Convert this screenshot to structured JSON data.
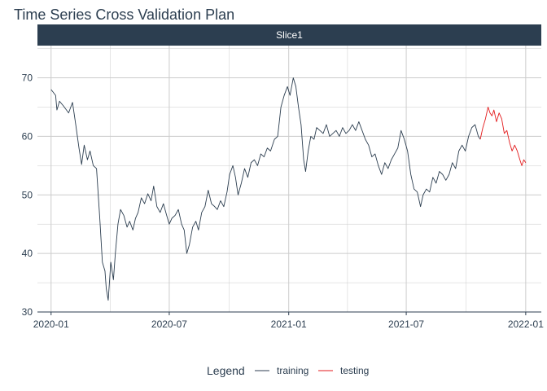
{
  "chart_data": {
    "type": "line",
    "title": "Time Series Cross Validation Plan",
    "facet_label": "Slice1",
    "xlabel": "",
    "ylabel": "",
    "x_range": [
      "2019-12-11",
      "2022-01-25"
    ],
    "ylim": [
      30,
      75.5
    ],
    "x_ticks": [
      "2020-01",
      "2020-07",
      "2021-01",
      "2021-07",
      "2022-01"
    ],
    "x_tick_dates": [
      "2020-01-01",
      "2020-07-01",
      "2021-01-01",
      "2021-07-01",
      "2022-01-01"
    ],
    "y_ticks": [
      30,
      40,
      50,
      60,
      70
    ],
    "grid": true,
    "legend": {
      "title": "Legend",
      "position": "bottom",
      "entries": [
        {
          "label": "training",
          "color": "#2c3e50"
        },
        {
          "label": "testing",
          "color": "#e31a1c"
        }
      ]
    },
    "colors": {
      "title": "#2c3e50",
      "strip_bg": "#2c3e50",
      "grid": "#cccccc",
      "training": "#2c3e50",
      "testing": "#e31a1c"
    },
    "series": [
      {
        "name": "training",
        "points": [
          [
            "2020-01-01",
            68.0
          ],
          [
            "2020-01-08",
            67.0
          ],
          [
            "2020-01-10",
            64.5
          ],
          [
            "2020-01-14",
            66.0
          ],
          [
            "2020-01-20",
            65.2
          ],
          [
            "2020-01-28",
            64.0
          ],
          [
            "2020-02-03",
            65.8
          ],
          [
            "2020-02-08",
            62.0
          ],
          [
            "2020-02-13",
            58.0
          ],
          [
            "2020-02-17",
            55.2
          ],
          [
            "2020-02-21",
            58.5
          ],
          [
            "2020-02-26",
            56.0
          ],
          [
            "2020-03-01",
            57.5
          ],
          [
            "2020-03-06",
            55.0
          ],
          [
            "2020-03-11",
            54.5
          ],
          [
            "2020-03-16",
            46.0
          ],
          [
            "2020-03-20",
            38.5
          ],
          [
            "2020-03-24",
            37.0
          ],
          [
            "2020-03-26",
            34.0
          ],
          [
            "2020-03-29",
            32.0
          ],
          [
            "2020-04-02",
            38.5
          ],
          [
            "2020-04-06",
            35.5
          ],
          [
            "2020-04-09",
            40.0
          ],
          [
            "2020-04-13",
            45.0
          ],
          [
            "2020-04-17",
            47.5
          ],
          [
            "2020-04-22",
            46.5
          ],
          [
            "2020-04-27",
            44.5
          ],
          [
            "2020-05-01",
            45.5
          ],
          [
            "2020-05-06",
            44.0
          ],
          [
            "2020-05-10",
            46.0
          ],
          [
            "2020-05-14",
            47.0
          ],
          [
            "2020-05-19",
            49.5
          ],
          [
            "2020-05-24",
            48.5
          ],
          [
            "2020-05-29",
            50.2
          ],
          [
            "2020-06-03",
            49.0
          ],
          [
            "2020-06-07",
            51.5
          ],
          [
            "2020-06-12",
            48.0
          ],
          [
            "2020-06-17",
            47.0
          ],
          [
            "2020-06-22",
            48.5
          ],
          [
            "2020-06-27",
            46.5
          ],
          [
            "2020-07-01",
            45.0
          ],
          [
            "2020-07-05",
            46.0
          ],
          [
            "2020-07-10",
            46.5
          ],
          [
            "2020-07-15",
            47.5
          ],
          [
            "2020-07-20",
            45.0
          ],
          [
            "2020-07-24",
            44.0
          ],
          [
            "2020-07-28",
            40.0
          ],
          [
            "2020-08-01",
            41.5
          ],
          [
            "2020-08-06",
            44.5
          ],
          [
            "2020-08-11",
            45.5
          ],
          [
            "2020-08-15",
            44.0
          ],
          [
            "2020-08-20",
            47.0
          ],
          [
            "2020-08-25",
            48.0
          ],
          [
            "2020-08-30",
            50.8
          ],
          [
            "2020-09-04",
            48.5
          ],
          [
            "2020-09-09",
            48.0
          ],
          [
            "2020-09-13",
            47.5
          ],
          [
            "2020-09-18",
            49.0
          ],
          [
            "2020-09-23",
            48.0
          ],
          [
            "2020-09-28",
            50.5
          ],
          [
            "2020-10-02",
            53.5
          ],
          [
            "2020-10-07",
            55.0
          ],
          [
            "2020-10-11",
            53.0
          ],
          [
            "2020-10-15",
            50.0
          ],
          [
            "2020-10-20",
            52.0
          ],
          [
            "2020-10-25",
            54.5
          ],
          [
            "2020-10-30",
            53.0
          ],
          [
            "2020-11-04",
            55.5
          ],
          [
            "2020-11-09",
            56.0
          ],
          [
            "2020-11-14",
            55.0
          ],
          [
            "2020-11-19",
            57.0
          ],
          [
            "2020-11-24",
            56.5
          ],
          [
            "2020-11-29",
            58.0
          ],
          [
            "2020-12-04",
            57.5
          ],
          [
            "2020-12-10",
            59.5
          ],
          [
            "2020-12-15",
            60.0
          ],
          [
            "2020-12-20",
            65.0
          ],
          [
            "2020-12-25",
            67.0
          ],
          [
            "2020-12-30",
            68.5
          ],
          [
            "2021-01-03",
            67.0
          ],
          [
            "2021-01-08",
            70.0
          ],
          [
            "2021-01-12",
            68.5
          ],
          [
            "2021-01-16",
            65.0
          ],
          [
            "2021-01-20",
            62.0
          ],
          [
            "2021-01-24",
            56.0
          ],
          [
            "2021-01-27",
            54.0
          ],
          [
            "2021-01-31",
            57.5
          ],
          [
            "2021-02-04",
            60.0
          ],
          [
            "2021-02-09",
            59.5
          ],
          [
            "2021-02-13",
            61.5
          ],
          [
            "2021-02-18",
            61.0
          ],
          [
            "2021-02-23",
            60.5
          ],
          [
            "2021-02-28",
            62.0
          ],
          [
            "2021-03-05",
            60.0
          ],
          [
            "2021-03-10",
            60.5
          ],
          [
            "2021-03-15",
            61.0
          ],
          [
            "2021-03-20",
            60.0
          ],
          [
            "2021-03-25",
            61.5
          ],
          [
            "2021-03-30",
            60.5
          ],
          [
            "2021-04-04",
            61.0
          ],
          [
            "2021-04-09",
            62.0
          ],
          [
            "2021-04-14",
            61.0
          ],
          [
            "2021-04-19",
            62.5
          ],
          [
            "2021-04-24",
            61.0
          ],
          [
            "2021-04-29",
            59.5
          ],
          [
            "2021-05-04",
            58.5
          ],
          [
            "2021-05-09",
            56.5
          ],
          [
            "2021-05-14",
            57.0
          ],
          [
            "2021-05-19",
            55.0
          ],
          [
            "2021-05-24",
            53.5
          ],
          [
            "2021-05-29",
            55.5
          ],
          [
            "2021-06-03",
            54.5
          ],
          [
            "2021-06-08",
            56.0
          ],
          [
            "2021-06-13",
            57.0
          ],
          [
            "2021-06-18",
            58.0
          ],
          [
            "2021-06-23",
            61.0
          ],
          [
            "2021-06-28",
            59.5
          ],
          [
            "2021-07-03",
            57.5
          ],
          [
            "2021-07-08",
            53.5
          ],
          [
            "2021-07-13",
            51.0
          ],
          [
            "2021-07-18",
            50.5
          ],
          [
            "2021-07-23",
            48.0
          ],
          [
            "2021-07-27",
            50.0
          ],
          [
            "2021-08-01",
            51.0
          ],
          [
            "2021-08-06",
            50.5
          ],
          [
            "2021-08-11",
            53.0
          ],
          [
            "2021-08-16",
            52.0
          ],
          [
            "2021-08-21",
            54.0
          ],
          [
            "2021-08-26",
            53.5
          ],
          [
            "2021-08-31",
            52.5
          ],
          [
            "2021-09-05",
            53.5
          ],
          [
            "2021-09-10",
            55.5
          ],
          [
            "2021-09-15",
            54.5
          ],
          [
            "2021-09-20",
            57.5
          ],
          [
            "2021-09-25",
            58.5
          ],
          [
            "2021-09-30",
            57.5
          ],
          [
            "2021-10-05",
            60.0
          ],
          [
            "2021-10-10",
            61.5
          ],
          [
            "2021-10-15",
            62.0
          ],
          [
            "2021-10-20",
            60.0
          ],
          [
            "2021-10-23",
            59.5
          ]
        ]
      },
      {
        "name": "testing",
        "points": [
          [
            "2021-10-23",
            59.5
          ],
          [
            "2021-10-27",
            61.5
          ],
          [
            "2021-10-31",
            63.0
          ],
          [
            "2021-11-04",
            65.0
          ],
          [
            "2021-11-07",
            64.0
          ],
          [
            "2021-11-10",
            63.5
          ],
          [
            "2021-11-13",
            64.5
          ],
          [
            "2021-11-17",
            62.5
          ],
          [
            "2021-11-21",
            64.0
          ],
          [
            "2021-11-25",
            63.0
          ],
          [
            "2021-11-29",
            60.5
          ],
          [
            "2021-12-03",
            61.0
          ],
          [
            "2021-12-07",
            59.0
          ],
          [
            "2021-12-11",
            57.5
          ],
          [
            "2021-12-15",
            58.5
          ],
          [
            "2021-12-19",
            57.5
          ],
          [
            "2021-12-23",
            56.0
          ],
          [
            "2021-12-26",
            55.0
          ],
          [
            "2021-12-29",
            56.0
          ],
          [
            "2022-01-01",
            55.5
          ]
        ]
      }
    ]
  }
}
